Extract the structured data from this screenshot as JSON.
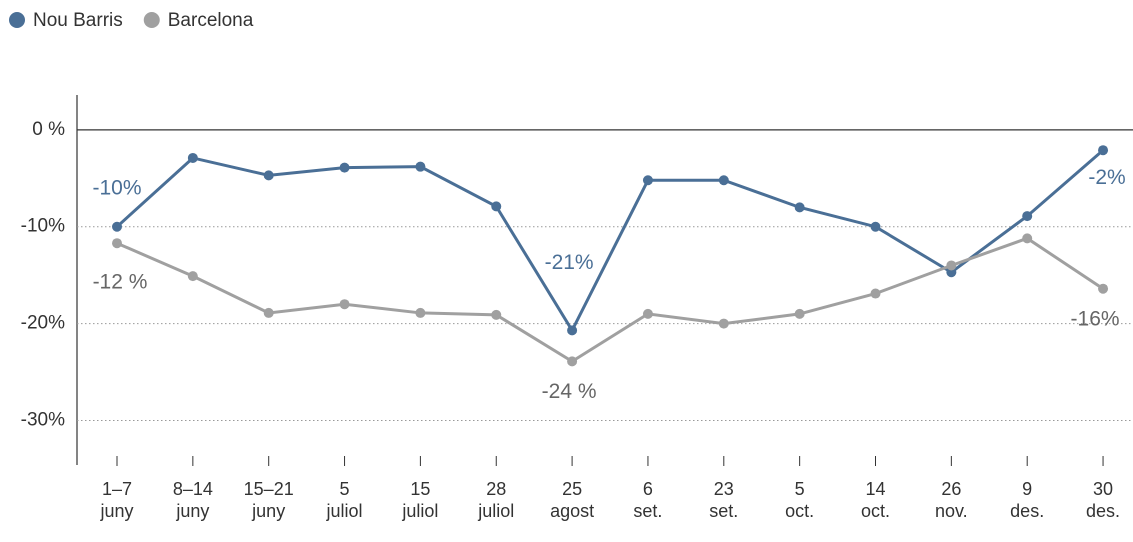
{
  "chart_data": {
    "type": "line",
    "categories": [
      "1–7\njuny",
      "8–14\njuny",
      "15–21\njuny",
      "5\njuliol",
      "15\njuliol",
      "28\njuliol",
      "25\nagost",
      "6\nset.",
      "23\nset.",
      "5\noct.",
      "14\noct.",
      "26\nnov.",
      "9\ndes.",
      "30\ndes."
    ],
    "series": [
      {
        "name": "Nou Barris",
        "color": "#4a6f96",
        "values": [
          -10,
          -2.9,
          -4.7,
          -3.9,
          -3.8,
          -7.9,
          -20.7,
          -5.2,
          -5.2,
          -8,
          -10,
          -14.7,
          -8.9,
          -2.1
        ],
        "value_labels": [
          "-10%",
          null,
          null,
          null,
          null,
          null,
          "-21%",
          null,
          null,
          null,
          null,
          null,
          null,
          "-2%"
        ]
      },
      {
        "name": "Barcelona",
        "color": "#a0a0a0",
        "values": [
          -11.7,
          -15.1,
          -18.9,
          -18,
          -18.9,
          -19.1,
          -23.9,
          -19,
          -20,
          -19,
          -16.9,
          -14,
          -11.2,
          -16.4
        ],
        "value_labels": [
          "-12 %",
          null,
          null,
          null,
          null,
          null,
          "-24 %",
          null,
          null,
          null,
          null,
          null,
          null,
          "-16%"
        ]
      }
    ],
    "ylim": [
      -34.6,
      3.6
    ],
    "yticks": [
      {
        "value": 0,
        "label": "0 %"
      },
      {
        "value": -10,
        "label": "-10%"
      },
      {
        "value": -20,
        "label": "-20%"
      },
      {
        "value": -30,
        "label": "-30%"
      }
    ],
    "grid": true,
    "legend": "top-left"
  }
}
